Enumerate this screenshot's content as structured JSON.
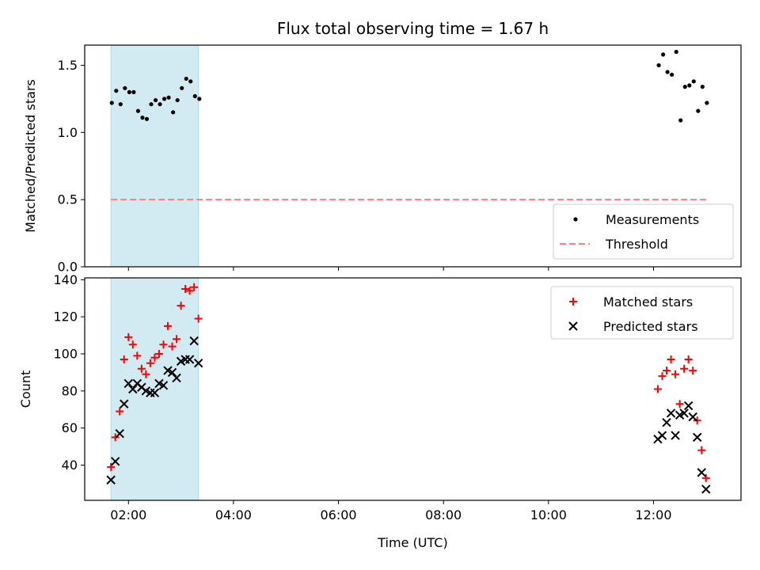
{
  "chart_data": [
    {
      "type": "scatter",
      "title": "Flux total observing time = 1.67 h",
      "xlabel": "",
      "ylabel": "Matched/Predicted stars",
      "xlim": [
        "01:10",
        "13:40"
      ],
      "ylim": [
        0,
        1.65
      ],
      "yticks": [
        0.0,
        0.5,
        1.0,
        1.5
      ],
      "ytick_labels": [
        "0.0",
        "0.5",
        "1.0",
        "1.5"
      ],
      "xticks": [
        "02:00",
        "04:00",
        "06:00",
        "08:00",
        "10:00",
        "12:00"
      ],
      "show_xtick_labels": false,
      "grid": false,
      "legend_position": "bottom-right",
      "shaded_span": {
        "x": [
          "01:40",
          "03:20"
        ],
        "color": "#add8e6"
      },
      "series": [
        {
          "name": "Measurements",
          "kind": "points",
          "color": "#000000",
          "x": [
            "01:41",
            "01:46",
            "01:51",
            "01:56",
            "02:01",
            "02:06",
            "02:11",
            "02:16",
            "02:21",
            "02:26",
            "02:31",
            "02:36",
            "02:41",
            "02:46",
            "02:51",
            "02:56",
            "03:01",
            "03:06",
            "03:11",
            "03:16",
            "03:21",
            "12:06",
            "12:11",
            "12:16",
            "12:21",
            "12:26",
            "12:31",
            "12:36",
            "12:41",
            "12:46",
            "12:51",
            "12:56",
            "13:01"
          ],
          "y": [
            1.22,
            1.31,
            1.21,
            1.33,
            1.3,
            1.3,
            1.16,
            1.11,
            1.1,
            1.21,
            1.24,
            1.21,
            1.25,
            1.26,
            1.15,
            1.24,
            1.33,
            1.4,
            1.38,
            1.27,
            1.25,
            1.5,
            1.58,
            1.45,
            1.43,
            1.6,
            1.09,
            1.34,
            1.35,
            1.38,
            1.16,
            1.34,
            1.22
          ]
        },
        {
          "name": "Threshold",
          "kind": "dashed-line",
          "color": "#ff7f7f",
          "x": [
            "01:40",
            "13:00"
          ],
          "y": [
            0.5,
            0.5
          ]
        }
      ]
    },
    {
      "type": "scatter",
      "title": "",
      "xlabel": "Time (UTC)",
      "ylabel": "Count",
      "xlim": [
        "01:10",
        "13:40"
      ],
      "ylim": [
        21,
        141
      ],
      "yticks": [
        40,
        60,
        80,
        100,
        120,
        140
      ],
      "ytick_labels": [
        "40",
        "60",
        "80",
        "100",
        "120",
        "140"
      ],
      "xticks": [
        "02:00",
        "04:00",
        "06:00",
        "08:00",
        "10:00",
        "12:00"
      ],
      "xtick_labels": [
        "02:00",
        "04:00",
        "06:00",
        "08:00",
        "10:00",
        "12:00"
      ],
      "grid": false,
      "legend_position": "top-right",
      "shaded_span": {
        "x": [
          "01:40",
          "03:20"
        ],
        "color": "#add8e6"
      },
      "series": [
        {
          "name": "Matched stars",
          "kind": "plus",
          "color": "#ff0000",
          "x": [
            "01:40",
            "01:45",
            "01:50",
            "01:55",
            "02:00",
            "02:05",
            "02:10",
            "02:15",
            "02:20",
            "02:25",
            "02:30",
            "02:35",
            "02:40",
            "02:45",
            "02:50",
            "02:55",
            "03:00",
            "03:05",
            "03:10",
            "03:15",
            "03:20",
            "12:05",
            "12:10",
            "12:15",
            "12:20",
            "12:25",
            "12:30",
            "12:35",
            "12:40",
            "12:45",
            "12:50",
            "12:55",
            "13:00"
          ],
          "y": [
            39,
            55,
            69,
            97,
            109,
            105,
            99,
            92,
            89,
            95,
            98,
            100,
            105,
            115,
            104,
            108,
            126,
            135,
            134,
            136,
            119,
            81,
            88,
            91,
            97,
            89,
            73,
            92,
            97,
            91,
            64,
            48,
            33
          ]
        },
        {
          "name": "Predicted stars",
          "kind": "x",
          "color": "#000000",
          "x": [
            "01:40",
            "01:45",
            "01:50",
            "01:55",
            "02:00",
            "02:05",
            "02:10",
            "02:15",
            "02:20",
            "02:25",
            "02:30",
            "02:35",
            "02:40",
            "02:45",
            "02:50",
            "02:55",
            "03:00",
            "03:05",
            "03:10",
            "03:15",
            "03:20",
            "12:05",
            "12:10",
            "12:15",
            "12:20",
            "12:25",
            "12:30",
            "12:35",
            "12:40",
            "12:45",
            "12:50",
            "12:55",
            "13:00"
          ],
          "y": [
            32,
            42,
            57,
            73,
            84,
            81,
            84,
            82,
            80,
            79,
            79,
            84,
            83,
            91,
            90,
            87,
            96,
            97,
            97,
            107,
            95,
            54,
            56,
            63,
            68,
            56,
            67,
            68,
            72,
            66,
            55,
            36,
            27
          ]
        }
      ]
    }
  ]
}
